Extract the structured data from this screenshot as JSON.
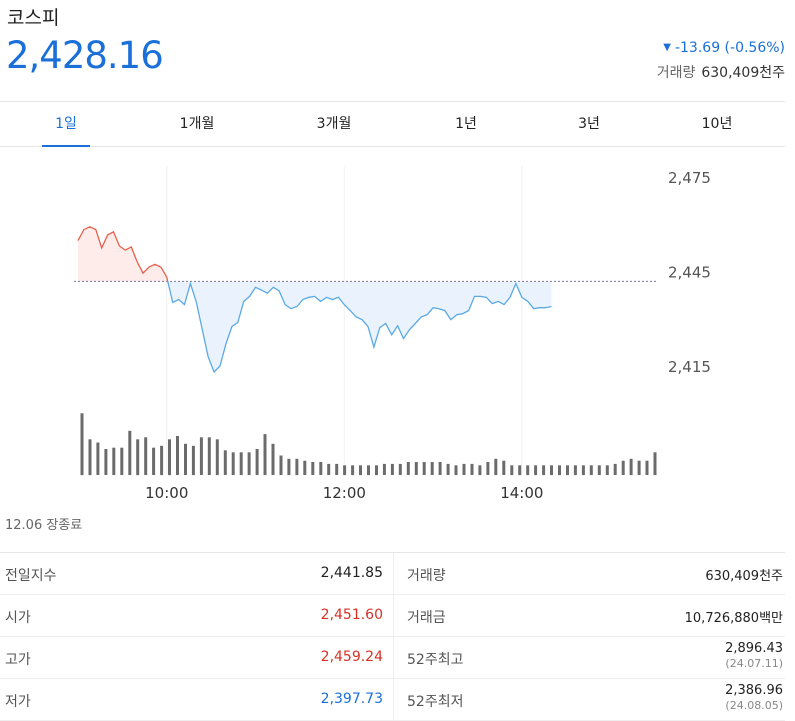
{
  "header": {
    "name": "코스피",
    "value": "2,428.16",
    "change": "-13.69 (-0.56%)",
    "volume_label": "거래량",
    "volume_value": "630,409천주"
  },
  "tabs": [
    {
      "label": "1일",
      "active": true
    },
    {
      "label": "1개월",
      "active": false
    },
    {
      "label": "3개월",
      "active": false
    },
    {
      "label": "1년",
      "active": false
    },
    {
      "label": "3년",
      "active": false
    },
    {
      "label": "10년",
      "active": false
    }
  ],
  "colors": {
    "up": "#e8604c",
    "down": "#5aa9e6",
    "accent": "#1a6fd8",
    "volume": "#6b6b6b"
  },
  "chart_data": {
    "type": "line",
    "reference_value": 2441.85,
    "y_ticks": [
      "2,475",
      "2,445",
      "2,415"
    ],
    "y_tick_values": [
      2475,
      2445,
      2415
    ],
    "ylim": [
      2475,
      2415
    ],
    "x_ticks": [
      "10:00",
      "12:00",
      "14:00"
    ],
    "x_tick_values": [
      600,
      720,
      840
    ],
    "xlim": [
      540,
      930
    ],
    "price": [
      [
        540,
        2454.8
      ],
      [
        544,
        2458.3
      ],
      [
        548,
        2459.2
      ],
      [
        552,
        2458.3
      ],
      [
        556,
        2452.5
      ],
      [
        560,
        2456.6
      ],
      [
        564,
        2457.6
      ],
      [
        568,
        2453.1
      ],
      [
        572,
        2451.8
      ],
      [
        576,
        2452.8
      ],
      [
        580,
        2448.0
      ],
      [
        584,
        2444.5
      ],
      [
        588,
        2446.4
      ],
      [
        592,
        2447.3
      ],
      [
        596,
        2446.4
      ],
      [
        600,
        2443.2
      ],
      [
        604,
        2435.2
      ],
      [
        608,
        2436.1
      ],
      [
        612,
        2434.5
      ],
      [
        616,
        2441.2
      ],
      [
        620,
        2435.2
      ],
      [
        624,
        2426.5
      ],
      [
        628,
        2417.9
      ],
      [
        632,
        2413.1
      ],
      [
        636,
        2415.0
      ],
      [
        640,
        2422.0
      ],
      [
        644,
        2427.5
      ],
      [
        648,
        2428.8
      ],
      [
        652,
        2435.5
      ],
      [
        656,
        2437.1
      ],
      [
        660,
        2440.0
      ],
      [
        664,
        2439.1
      ],
      [
        668,
        2438.1
      ],
      [
        672,
        2440.0
      ],
      [
        676,
        2438.8
      ],
      [
        680,
        2434.5
      ],
      [
        684,
        2433.2
      ],
      [
        688,
        2433.9
      ],
      [
        692,
        2436.1
      ],
      [
        696,
        2436.8
      ],
      [
        700,
        2437.1
      ],
      [
        704,
        2435.5
      ],
      [
        708,
        2436.8
      ],
      [
        712,
        2436.1
      ],
      [
        716,
        2436.8
      ],
      [
        720,
        2434.5
      ],
      [
        724,
        2432.6
      ],
      [
        728,
        2430.6
      ],
      [
        732,
        2429.7
      ],
      [
        736,
        2427.5
      ],
      [
        740,
        2421.0
      ],
      [
        744,
        2427.2
      ],
      [
        748,
        2428.5
      ],
      [
        752,
        2424.9
      ],
      [
        756,
        2427.8
      ],
      [
        760,
        2423.7
      ],
      [
        764,
        2426.5
      ],
      [
        768,
        2428.5
      ],
      [
        772,
        2430.6
      ],
      [
        776,
        2431.3
      ],
      [
        780,
        2433.5
      ],
      [
        784,
        2433.2
      ],
      [
        788,
        2432.6
      ],
      [
        792,
        2429.7
      ],
      [
        796,
        2431.3
      ],
      [
        800,
        2431.6
      ],
      [
        804,
        2432.6
      ],
      [
        808,
        2437.1
      ],
      [
        812,
        2437.1
      ],
      [
        816,
        2436.8
      ],
      [
        820,
        2434.8
      ],
      [
        824,
        2435.5
      ],
      [
        828,
        2434.5
      ],
      [
        832,
        2436.8
      ],
      [
        836,
        2441.2
      ],
      [
        840,
        2436.8
      ],
      [
        844,
        2435.5
      ],
      [
        848,
        2433.2
      ],
      [
        852,
        2433.5
      ],
      [
        856,
        2433.5
      ],
      [
        860,
        2433.9
      ]
    ],
    "volume": [
      0.95,
      0.55,
      0.5,
      0.4,
      0.42,
      0.42,
      0.68,
      0.55,
      0.58,
      0.42,
      0.45,
      0.55,
      0.6,
      0.48,
      0.45,
      0.58,
      0.58,
      0.55,
      0.38,
      0.35,
      0.35,
      0.35,
      0.4,
      0.63,
      0.48,
      0.3,
      0.25,
      0.25,
      0.22,
      0.2,
      0.2,
      0.17,
      0.17,
      0.15,
      0.15,
      0.15,
      0.15,
      0.15,
      0.17,
      0.17,
      0.17,
      0.2,
      0.2,
      0.2,
      0.2,
      0.2,
      0.17,
      0.15,
      0.17,
      0.17,
      0.15,
      0.2,
      0.25,
      0.22,
      0.15,
      0.15,
      0.15,
      0.15,
      0.15,
      0.15,
      0.15,
      0.15,
      0.15,
      0.15,
      0.15,
      0.15,
      0.15,
      0.17,
      0.22,
      0.25,
      0.22,
      0.22,
      0.35
    ]
  },
  "status": "12.06 장종료",
  "stats": [
    {
      "left_label": "전일지수",
      "left_value": "2,441.85",
      "left_color": "",
      "right_label": "거래량",
      "right_value": "630,409천주",
      "right_sub": ""
    },
    {
      "left_label": "시가",
      "left_value": "2,451.60",
      "left_color": "red",
      "right_label": "거래금",
      "right_value": "10,726,880백만",
      "right_sub": ""
    },
    {
      "left_label": "고가",
      "left_value": "2,459.24",
      "left_color": "red",
      "right_label": "52주최고",
      "right_value": "2,896.43",
      "right_sub": "(24.07.11)"
    },
    {
      "left_label": "저가",
      "left_value": "2,397.73",
      "left_color": "blue",
      "right_label": "52주최저",
      "right_value": "2,386.96",
      "right_sub": "(24.08.05)"
    }
  ]
}
